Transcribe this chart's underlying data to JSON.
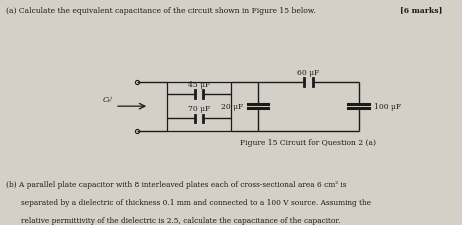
{
  "title_text": "(a) Calculate the equivalent capacitance of the circuit shown in Figure 15 below.",
  "title_marks": "[6 marks]",
  "figure_caption": "Figure 15 Circuit for Question 2 (a)",
  "bottom_text_line1": "(b) A parallel plate capacitor with 8 interleaved plates each of cross-sectional area 6 cm² is",
  "bottom_text_line2": "separated by a dielectric of thickness 0.1 mm and connected to a 100 V source. Assuming the",
  "bottom_text_line3": "relative permittivity of the dielectric is 2.5, calculate the capacitance of the capacitor.",
  "cap_labels": [
    "45 μF",
    "70 μF",
    "60 μF",
    "20 μF",
    "100 μF"
  ],
  "ceq_label": "Cₑⁱ",
  "bg_color": "#d4cfc7",
  "line_color": "#1a1a1a",
  "text_color": "#1a1a1a"
}
